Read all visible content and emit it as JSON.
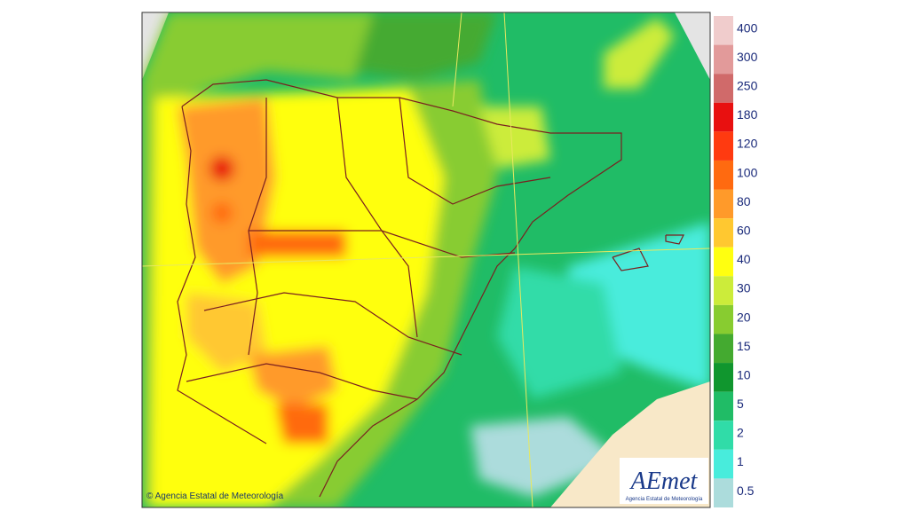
{
  "legend": {
    "items": [
      {
        "label": "400",
        "color": "#f0cccc"
      },
      {
        "label": "300",
        "color": "#e29a9a"
      },
      {
        "label": "250",
        "color": "#d06a6a"
      },
      {
        "label": "180",
        "color": "#e81010"
      },
      {
        "label": "120",
        "color": "#ff3a10"
      },
      {
        "label": "100",
        "color": "#ff6a10"
      },
      {
        "label": "80",
        "color": "#ff9a2a"
      },
      {
        "label": "60",
        "color": "#ffc830"
      },
      {
        "label": "40",
        "color": "#ffff10"
      },
      {
        "label": "30",
        "color": "#ccec3a"
      },
      {
        "label": "20",
        "color": "#88cc30"
      },
      {
        "label": "15",
        "color": "#44aa30"
      },
      {
        "label": "10",
        "color": "#10962e"
      },
      {
        "label": "5",
        "color": "#20bc66"
      },
      {
        "label": "2",
        "color": "#30dca8"
      },
      {
        "label": "1",
        "color": "#48ecdc"
      },
      {
        "label": "0.5",
        "color": "#acdcdc"
      }
    ]
  },
  "copyright": "Agencia Estatal de Meteorología",
  "logo": {
    "title": "AEmet",
    "subtitle": "Agencia Estatal de Meteorología"
  }
}
